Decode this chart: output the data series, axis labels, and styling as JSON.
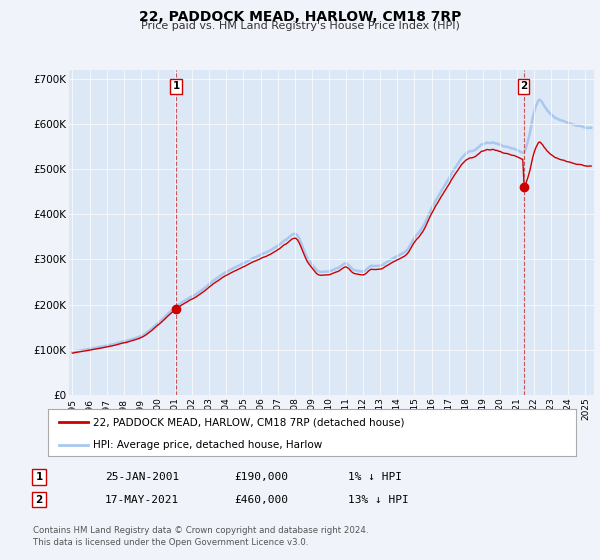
{
  "title": "22, PADDOCK MEAD, HARLOW, CM18 7RP",
  "subtitle": "Price paid vs. HM Land Registry's House Price Index (HPI)",
  "background_color": "#f0f4fa",
  "plot_bg_color": "#dce8f5",
  "hpi_color": "#a8c8f0",
  "price_color": "#cc0000",
  "marker_color": "#cc0000",
  "sale1_date": "25-JAN-2001",
  "sale1_price": 190000,
  "sale1_label": "1% ↓ HPI",
  "sale2_date": "17-MAY-2021",
  "sale2_price": 460000,
  "sale2_label": "13% ↓ HPI",
  "sale1_x": 2001.07,
  "sale2_x": 2021.38,
  "yticks": [
    0,
    100000,
    200000,
    300000,
    400000,
    500000,
    600000,
    700000
  ],
  "ytick_labels": [
    "£0",
    "£100K",
    "£200K",
    "£300K",
    "£400K",
    "£500K",
    "£600K",
    "£700K"
  ],
  "xmin": 1994.8,
  "xmax": 2025.5,
  "ymin": 0,
  "ymax": 720000,
  "legend_label1": "22, PADDOCK MEAD, HARLOW, CM18 7RP (detached house)",
  "legend_label2": "HPI: Average price, detached house, Harlow",
  "footer1": "Contains HM Land Registry data © Crown copyright and database right 2024.",
  "footer2": "This data is licensed under the Open Government Licence v3.0."
}
